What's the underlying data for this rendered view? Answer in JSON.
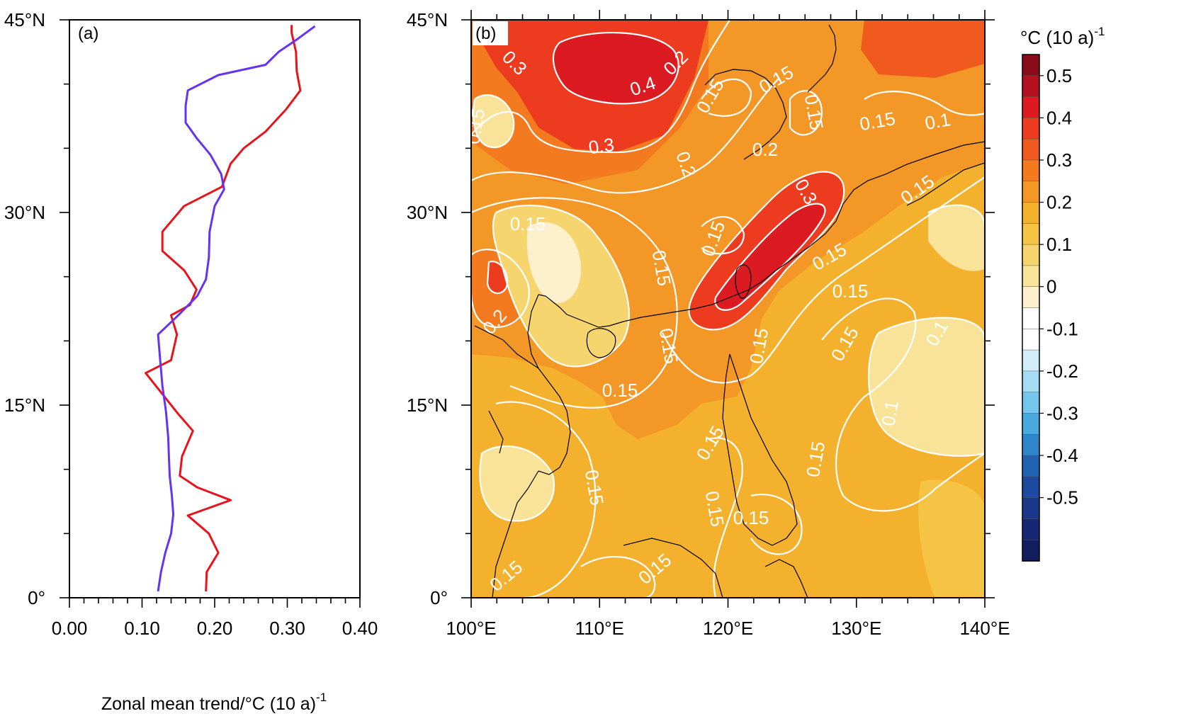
{
  "chart_data": [
    {
      "type": "line",
      "panel_label": "(a)",
      "xlabel": "Zonal mean trend/°C (10 a)",
      "xlabel_superscript": "-1",
      "xlim": [
        0.0,
        0.4
      ],
      "ylim": [
        0,
        45
      ],
      "xticks": [
        "0.00",
        "0.10",
        "0.20",
        "0.30",
        "0.40"
      ],
      "yticks": [
        {
          "value": 0,
          "label": "0°"
        },
        {
          "value": 15,
          "label": "15°N"
        },
        {
          "value": 30,
          "label": "30°N"
        },
        {
          "value": 45,
          "label": "45°N"
        }
      ],
      "series": [
        {
          "color": "#e8141c",
          "x": [
            0.188,
            0.189,
            0.205,
            0.192,
            0.163,
            0.222,
            0.176,
            0.152,
            0.155,
            0.17,
            0.15,
            0.105,
            0.14,
            0.148,
            0.14,
            0.166,
            0.175,
            0.158,
            0.128,
            0.128,
            0.158,
            0.21,
            0.222,
            0.24,
            0.27,
            0.298,
            0.318,
            0.313,
            0.312,
            0.306,
            0.306
          ],
          "y": [
            0.5,
            2.0,
            3.5,
            5.0,
            6.4,
            7.6,
            8.6,
            9.5,
            11.0,
            13.0,
            14.3,
            17.5,
            18.5,
            20.5,
            22.0,
            22.8,
            24.0,
            25.5,
            27.0,
            28.5,
            30.5,
            32.0,
            33.8,
            35.0,
            36.3,
            38.0,
            39.5,
            41.0,
            42.5,
            44.0,
            44.6
          ]
        },
        {
          "color": "#6633ee",
          "y2color": "#6633ee",
          "x": [
            0.122,
            0.126,
            0.132,
            0.14,
            0.143,
            0.141,
            0.138,
            0.137,
            0.136,
            0.133,
            0.128,
            0.125,
            0.122,
            0.15,
            0.176,
            0.188,
            0.192,
            0.193,
            0.2,
            0.213,
            0.209,
            0.194,
            0.175,
            0.16,
            0.16,
            0.163,
            0.205,
            0.27,
            0.288,
            0.314,
            0.338
          ],
          "y": [
            0.5,
            2.0,
            3.5,
            5.0,
            6.5,
            8.0,
            9.5,
            11.0,
            12.5,
            14.5,
            16.5,
            18.5,
            20.5,
            22.0,
            23.5,
            24.8,
            26.5,
            28.5,
            30.5,
            31.8,
            33.0,
            34.5,
            35.8,
            37.0,
            38.3,
            39.5,
            40.7,
            41.5,
            42.5,
            43.5,
            44.5
          ]
        }
      ]
    },
    {
      "type": "heatmap",
      "panel_label": "(b)",
      "xlim": [
        100,
        140
      ],
      "ylim": [
        0,
        45
      ],
      "xticks": [
        "100°E",
        "110°E",
        "120°E",
        "130°E",
        "140°E"
      ],
      "yticks": [
        {
          "value": 0,
          "label": "0°"
        },
        {
          "value": 15,
          "label": "15°N"
        },
        {
          "value": 30,
          "label": "30°N"
        },
        {
          "value": 45,
          "label": "45°N"
        }
      ],
      "contour_labels": [
        "0.3",
        "0.4",
        "0.2",
        "0.15",
        "0.15",
        "0.2",
        "0.15",
        "0.3",
        "0.2",
        "0.3",
        "0.15",
        "0.15",
        "0.15",
        "0.15",
        "0.2",
        "0.15",
        "0.15",
        "0.15",
        "0.15",
        "0.15",
        "0.15",
        "0.1",
        "0.1",
        "0.15",
        "0.15",
        "0.15",
        "0.15",
        "0.15",
        "0.1",
        "0.15",
        "0.15",
        "0.15",
        "0.15"
      ],
      "colorbar": {
        "title": "°C (10 a)",
        "title_superscript": "-1",
        "labels": [
          "0.5",
          "0.4",
          "0.3",
          "0.2",
          "0.1",
          "0",
          "-0.1",
          "-0.2",
          "-0.3",
          "-0.4",
          "-0.5"
        ],
        "colors": [
          "#8a0c1a",
          "#b5101f",
          "#dc1a22",
          "#ec3b1f",
          "#f05a1e",
          "#f37a1f",
          "#f39726",
          "#f4b12e",
          "#f5c444",
          "#f7d56e",
          "#f9e399",
          "#fcf1cc",
          "#ffffff",
          "#ffffff",
          "#d2eef9",
          "#a6dcf3",
          "#74c6ec",
          "#49a8de",
          "#2f86cb",
          "#2163b3",
          "#1d4a9e",
          "#1a3789",
          "#172775",
          "#121e5e"
        ]
      }
    }
  ]
}
